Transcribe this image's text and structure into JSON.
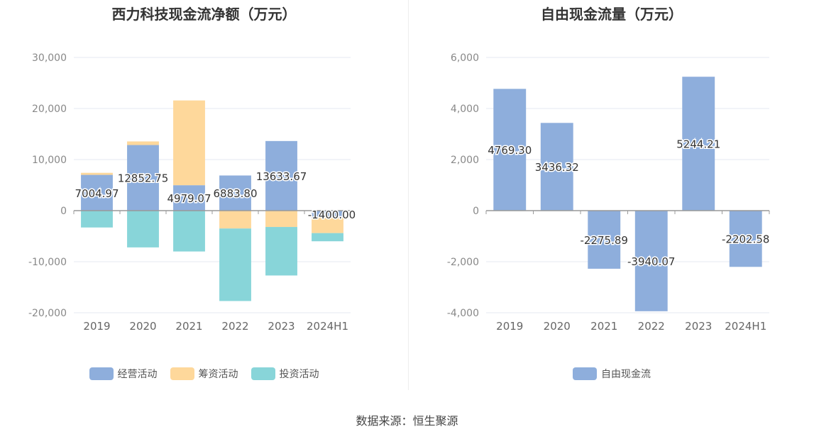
{
  "source_label": "数据来源：恒生聚源",
  "chart_data": [
    {
      "type": "bar",
      "stacked": true,
      "title": "西力科技现金流净额（万元）",
      "categories": [
        "2019",
        "2020",
        "2021",
        "2022",
        "2023",
        "2024H1"
      ],
      "ylim": [
        -20000,
        30000
      ],
      "yticks": [
        30000,
        20000,
        10000,
        0,
        -10000,
        -20000
      ],
      "ytick_labels": [
        "30,000",
        "20,000",
        "10,000",
        "0",
        "-10,000",
        "-20,000"
      ],
      "grid": true,
      "legend_position": "bottom",
      "series": [
        {
          "name": "经营活动",
          "color": "#8eaedc",
          "values": [
            7004.97,
            12852.75,
            4979.07,
            6883.8,
            13633.67,
            -1400.0
          ]
        },
        {
          "name": "筹资活动",
          "color": "#fed89b",
          "values": [
            400,
            700,
            16600,
            -3500,
            -3200,
            -3000
          ]
        },
        {
          "name": "投资活动",
          "color": "#88d5d9",
          "values": [
            -3300,
            -7200,
            -8000,
            -14200,
            -9500,
            -1600
          ]
        }
      ],
      "data_labels": [
        "7004.97",
        "12852.75",
        "4979.07",
        "6883.80",
        "13633.67",
        "-1400.00"
      ]
    },
    {
      "type": "bar",
      "title": "自由现金流量（万元）",
      "categories": [
        "2019",
        "2020",
        "2021",
        "2022",
        "2023",
        "2024H1"
      ],
      "ylim": [
        -4000,
        6000
      ],
      "yticks": [
        6000,
        4000,
        2000,
        0,
        -2000,
        -4000
      ],
      "ytick_labels": [
        "6,000",
        "4,000",
        "2,000",
        "0",
        "-2,000",
        "-4,000"
      ],
      "grid": true,
      "legend_position": "bottom",
      "series": [
        {
          "name": "自由现金流",
          "color": "#8eaedc",
          "values": [
            4769.3,
            3436.32,
            -2275.89,
            -3940.07,
            5244.21,
            -2202.58
          ]
        }
      ],
      "data_labels": [
        "4769.30",
        "3436.32",
        "-2275.89",
        "-3940.07",
        "5244.21",
        "-2202.58"
      ]
    }
  ]
}
